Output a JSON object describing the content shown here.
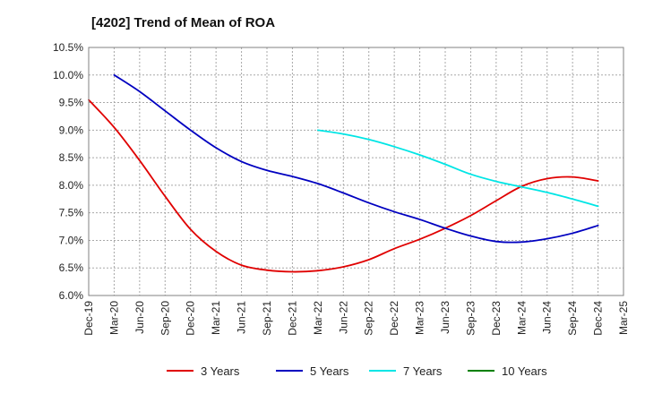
{
  "chart_data": {
    "type": "line",
    "title": "[4202]  Trend of Mean of ROA",
    "xlabel": "",
    "ylabel": "",
    "ylim": [
      6.0,
      10.5
    ],
    "y_ticks": [
      "6.0%",
      "6.5%",
      "7.0%",
      "7.5%",
      "8.0%",
      "8.5%",
      "9.0%",
      "9.5%",
      "10.0%",
      "10.5%"
    ],
    "categories": [
      "Dec-19",
      "Mar-20",
      "Jun-20",
      "Sep-20",
      "Dec-20",
      "Mar-21",
      "Jun-21",
      "Sep-21",
      "Dec-21",
      "Mar-22",
      "Jun-22",
      "Sep-22",
      "Dec-22",
      "Mar-23",
      "Jun-23",
      "Sep-23",
      "Dec-23",
      "Mar-24",
      "Jun-24",
      "Sep-24",
      "Dec-24",
      "Mar-25"
    ],
    "grid": true,
    "legend_position": "bottom",
    "series": [
      {
        "name": "3 Years",
        "color": "#e00000",
        "values": [
          9.55,
          9.05,
          8.45,
          7.8,
          7.2,
          6.8,
          6.55,
          6.46,
          6.43,
          6.45,
          6.52,
          6.65,
          6.85,
          7.02,
          7.22,
          7.45,
          7.72,
          7.98,
          8.12,
          8.15,
          8.08,
          null
        ]
      },
      {
        "name": "5 Years",
        "color": "#0000c0",
        "values": [
          null,
          10.0,
          9.7,
          9.35,
          9.0,
          8.68,
          8.43,
          8.27,
          8.16,
          8.03,
          7.86,
          7.68,
          7.52,
          7.38,
          7.22,
          7.08,
          6.98,
          6.97,
          7.03,
          7.13,
          7.27,
          null
        ]
      },
      {
        "name": "7 Years",
        "color": "#00e5e5",
        "values": [
          null,
          null,
          null,
          null,
          null,
          null,
          null,
          null,
          null,
          9.0,
          8.93,
          8.83,
          8.7,
          8.55,
          8.38,
          8.2,
          8.07,
          7.97,
          7.87,
          7.75,
          7.62,
          null
        ]
      },
      {
        "name": "10 Years",
        "color": "#008000",
        "values": [
          null,
          null,
          null,
          null,
          null,
          null,
          null,
          null,
          null,
          null,
          null,
          null,
          null,
          null,
          null,
          null,
          null,
          null,
          null,
          null,
          null,
          null
        ]
      }
    ]
  }
}
